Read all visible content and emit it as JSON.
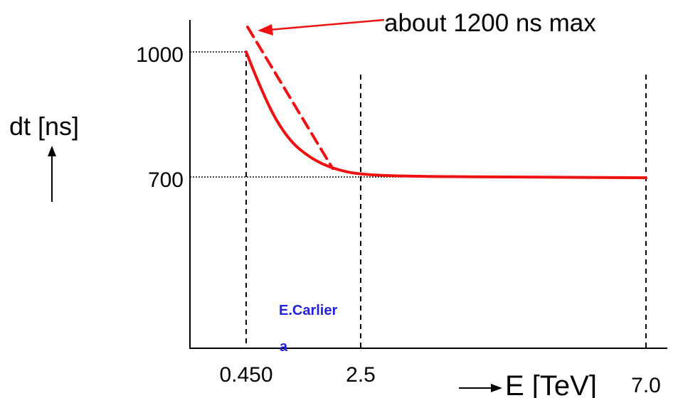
{
  "chart_data": {
    "type": "line",
    "title": "",
    "ylabel": "dt [ns]",
    "xlabel": "E [TeV]",
    "y_ticks": [
      {
        "value": 1000,
        "label": "1000"
      },
      {
        "value": 700,
        "label": "700"
      }
    ],
    "x_ticks": [
      {
        "value": 0.45,
        "label": "0.450"
      },
      {
        "value": 2.5,
        "label": "2.5"
      },
      {
        "value": 7.0,
        "label": "7.0"
      }
    ],
    "series": [
      {
        "style": "solid",
        "color": "#ee1111",
        "points": [
          [
            0.45,
            1000
          ],
          [
            0.8,
            880
          ],
          [
            1.2,
            790
          ],
          [
            1.6,
            745
          ],
          [
            2.0,
            720
          ],
          [
            2.5,
            705
          ],
          [
            3.5,
            701
          ],
          [
            5.0,
            700
          ],
          [
            7.0,
            698
          ]
        ]
      },
      {
        "style": "dashed",
        "color": "#ee1111",
        "points": [
          [
            0.45,
            1200
          ],
          [
            2.0,
            720
          ]
        ]
      }
    ],
    "annotation": {
      "text": "about 1200 ns max",
      "points_to": [
        0.45,
        1200
      ]
    },
    "grid": false
  },
  "colors": {
    "curve": "#ee1111",
    "axis": "#000000",
    "credit": "#2222dd"
  },
  "credits": {
    "line1": "E.Carlier",
    "line2": "a"
  }
}
